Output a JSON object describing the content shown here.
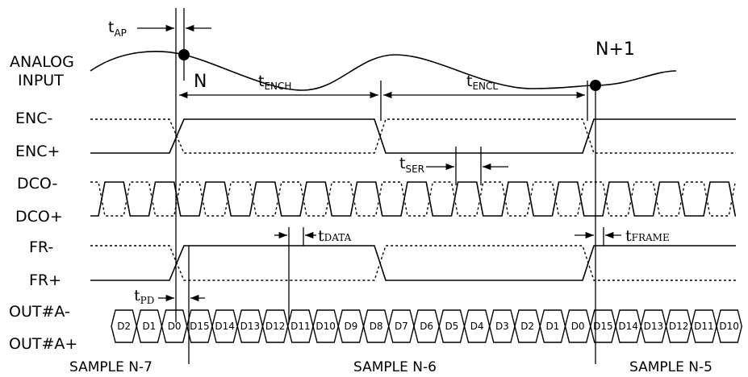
{
  "signals": {
    "analog_line1": "ANALOG",
    "analog_line2": "INPUT",
    "enc_minus": "ENC-",
    "enc_plus": "ENC+",
    "dco_minus": "DCO-",
    "dco_plus": "DCO+",
    "fr_minus": "FR-",
    "fr_plus": "FR+",
    "out_minus": "OUT#A-",
    "out_plus": "OUT#A+"
  },
  "timing": {
    "tap": {
      "main": "t",
      "sub": "AP"
    },
    "tench": {
      "main": "t",
      "sub": "ENCH"
    },
    "tencl": {
      "main": "t",
      "sub": "ENCL"
    },
    "tser": {
      "main": "t",
      "sub": "SER"
    },
    "tdata": {
      "main": "t",
      "sub": "DATA"
    },
    "tframe": {
      "main": "t",
      "sub": "FRAME"
    },
    "tpd": {
      "main": "t",
      "sub": "PD"
    }
  },
  "markers": {
    "n": "N",
    "n_plus_1": "N+1"
  },
  "samples": {
    "n7": "SAMPLE N-7",
    "n6": "SAMPLE N-6",
    "n5": "SAMPLE N-5"
  },
  "data_cells": [
    "D2",
    "D1",
    "D0",
    "D15",
    "D14",
    "D13",
    "D12",
    "D11",
    "D10",
    "D9",
    "D8",
    "D7",
    "D6",
    "D5",
    "D4",
    "D3",
    "D2",
    "D1",
    "D0",
    "D15",
    "D14",
    "D13",
    "D12",
    "D11",
    "D10"
  ]
}
